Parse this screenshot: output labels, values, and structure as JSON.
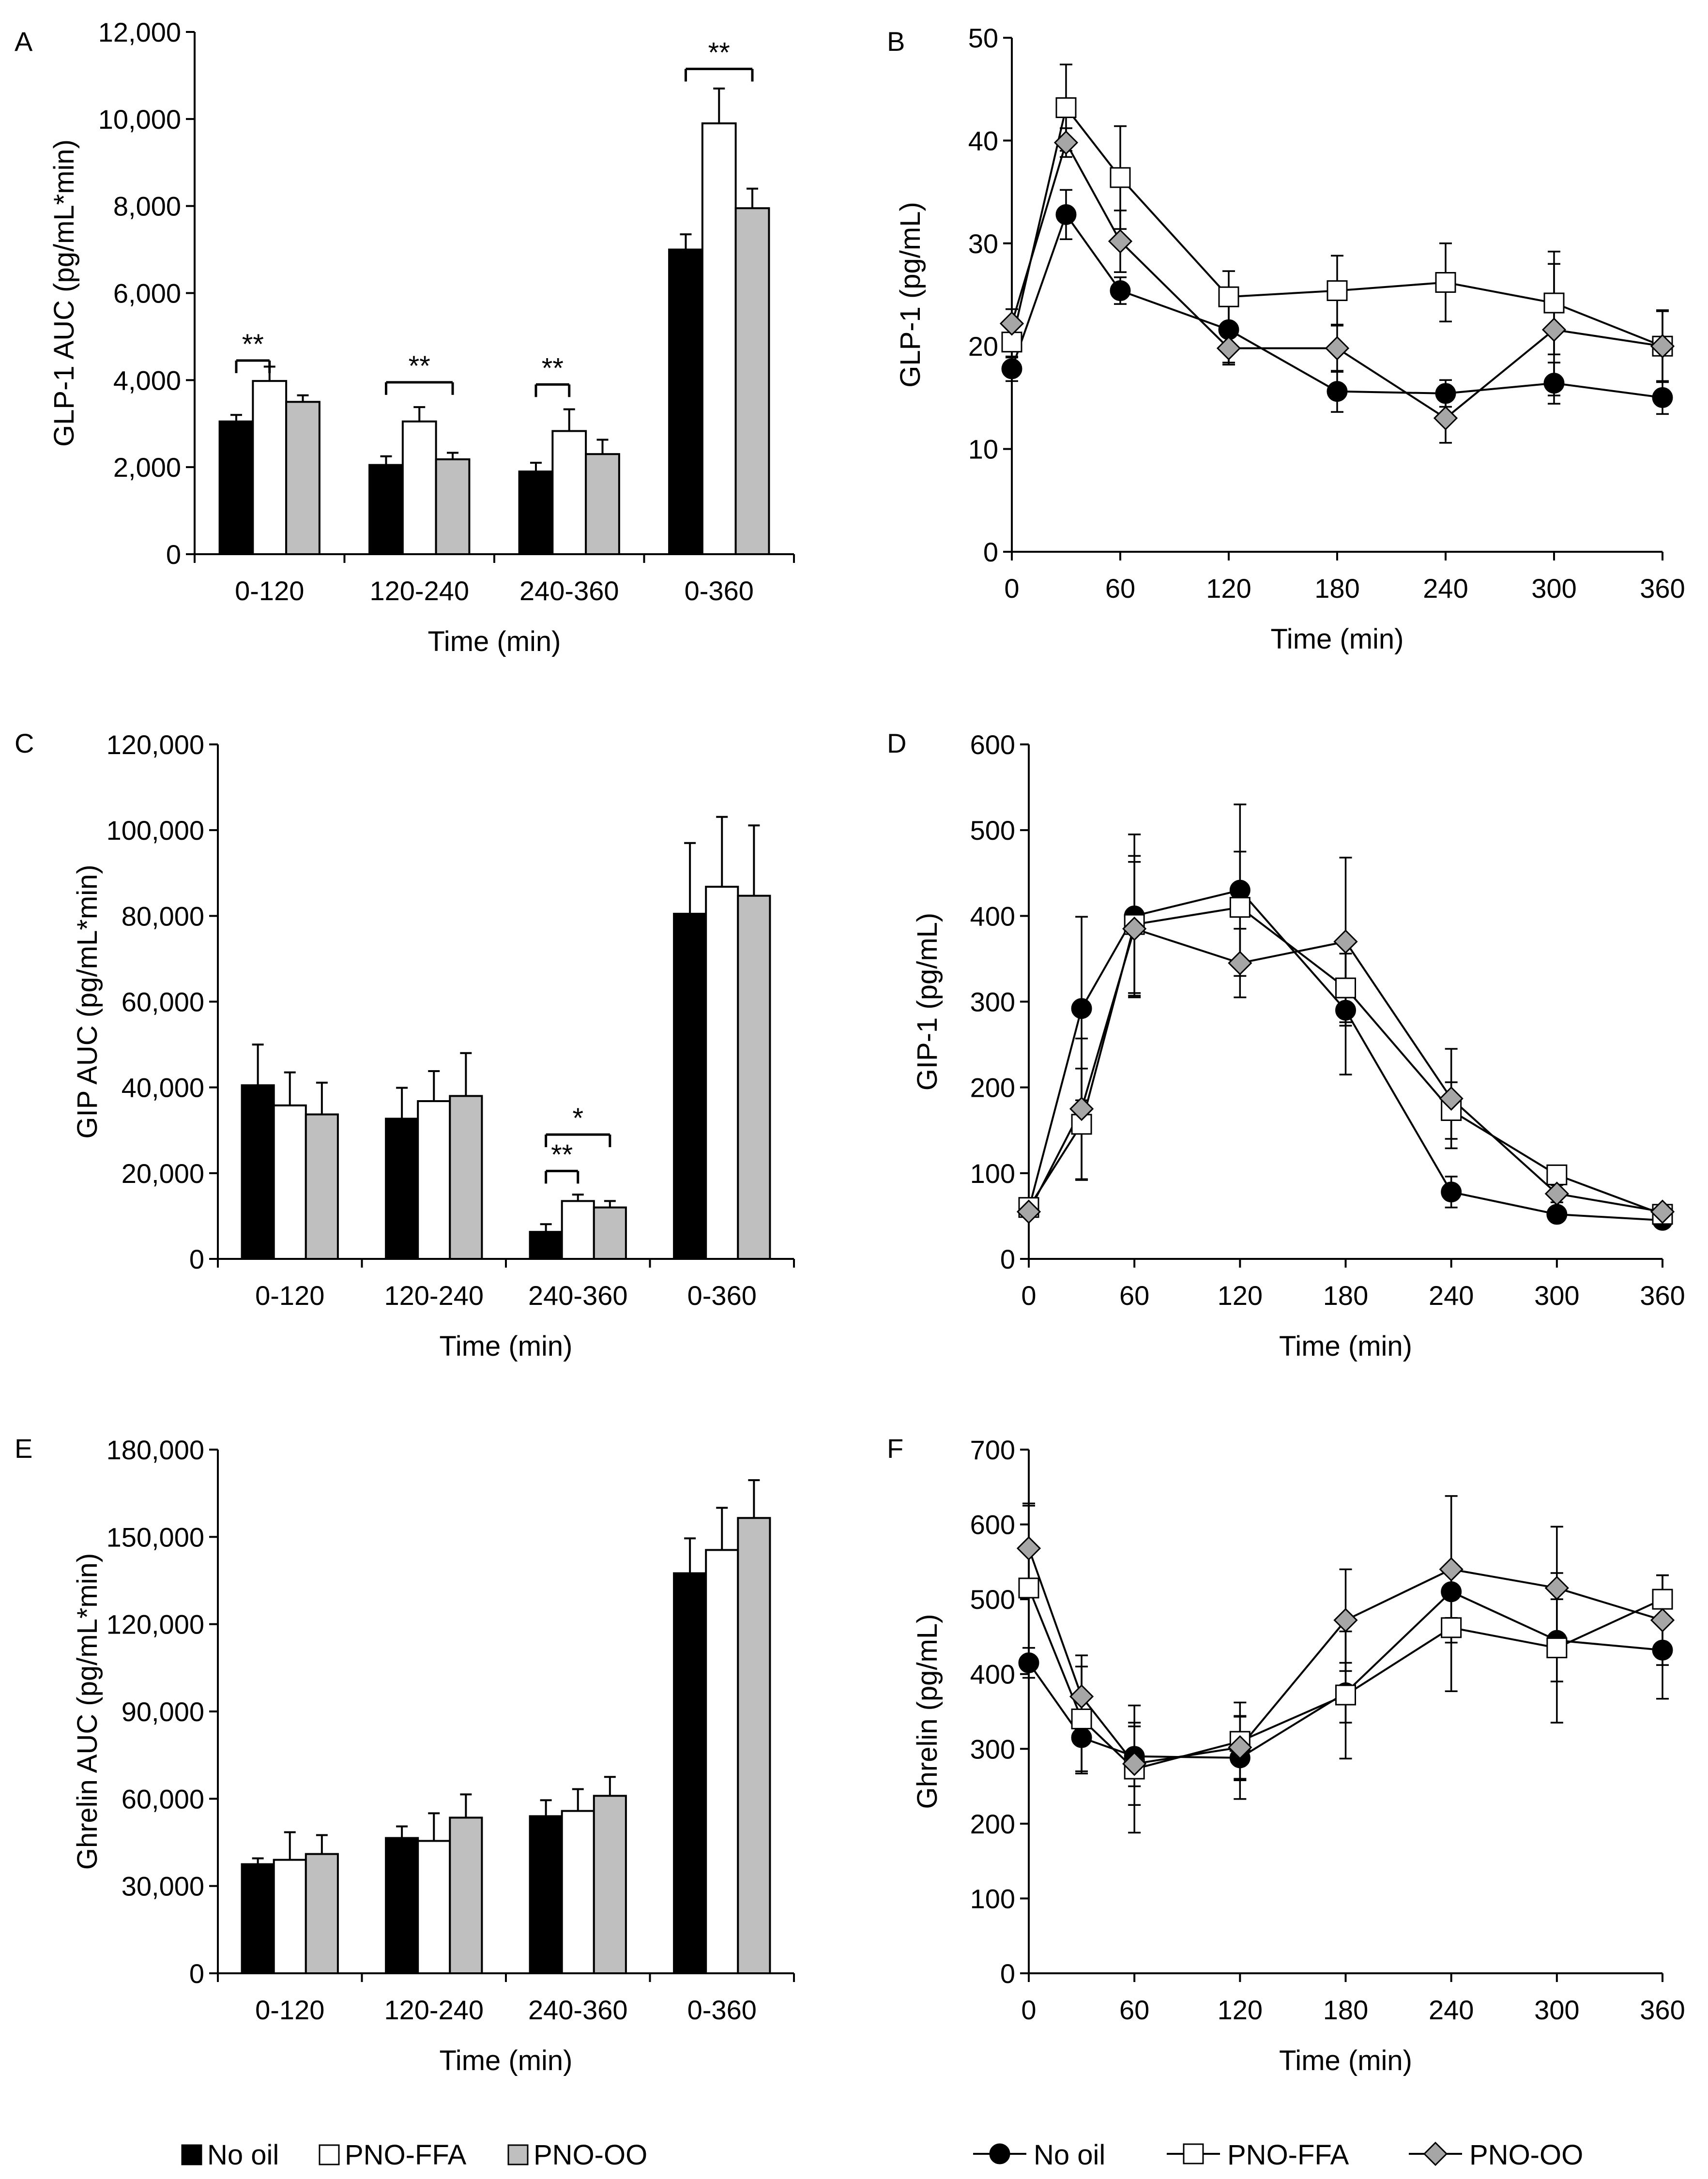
{
  "colors": {
    "no_oil": "#000000",
    "pno_ffa": "#ffffff",
    "pno_oo": "#bfbfbf",
    "pno_oo_marker": "#a6a6a6",
    "axis": "#000000"
  },
  "legend_bar": {
    "items": [
      {
        "label": "No oil",
        "swatch": "#000000"
      },
      {
        "label": "PNO-FFA",
        "swatch": "#ffffff"
      },
      {
        "label": "PNO-OO",
        "swatch": "#bfbfbf"
      }
    ]
  },
  "legend_line": {
    "items": [
      {
        "label": "No oil",
        "marker": "circle"
      },
      {
        "label": "PNO-FFA",
        "marker": "square"
      },
      {
        "label": "PNO-OO",
        "marker": "diamond"
      }
    ]
  },
  "chart_data": [
    {
      "panel": "A",
      "type": "bar",
      "ylabel": "GLP-1 AUC (pg/mL*min)",
      "xlabel": "Time (min)",
      "ylim": [
        0,
        12000
      ],
      "yticks": [
        0,
        2000,
        4000,
        6000,
        8000,
        10000,
        12000
      ],
      "ytick_labels": [
        "0",
        "2,000",
        "4,000",
        "6,000",
        "8,000",
        "10,000",
        "12,000"
      ],
      "categories": [
        "0-120",
        "120-240",
        "240-360",
        "0-360"
      ],
      "series": [
        {
          "name": "No oil",
          "values": [
            3050,
            2050,
            1900,
            7000
          ],
          "errors": [
            150,
            200,
            200,
            350
          ]
        },
        {
          "name": "PNO-FFA",
          "values": [
            3980,
            3050,
            2830,
            9900
          ],
          "errors": [
            330,
            330,
            500,
            800
          ]
        },
        {
          "name": "PNO-OO",
          "values": [
            3500,
            2180,
            2300,
            7950
          ],
          "errors": [
            150,
            150,
            330,
            450
          ]
        }
      ],
      "significance": [
        {
          "category": 0,
          "label": "**",
          "from_series": 0,
          "to_series": 1,
          "level": 4450
        },
        {
          "category": 1,
          "label": "**",
          "from_series": 0,
          "to_series": 2,
          "level": 3950
        },
        {
          "category": 2,
          "label": "**",
          "from_series": 0,
          "to_series": 1,
          "level": 3900
        },
        {
          "category": 3,
          "label": "**",
          "from_series": 0,
          "to_series": 2,
          "level": 11150
        }
      ]
    },
    {
      "panel": "B",
      "type": "line",
      "ylabel": "GLP-1 (pg/mL)",
      "xlabel": "Time (min)",
      "ylim": [
        0,
        50
      ],
      "yticks": [
        0,
        10,
        20,
        30,
        40,
        50
      ],
      "ytick_labels": [
        "0",
        "10",
        "20",
        "30",
        "40",
        "50"
      ],
      "xlim": [
        0,
        360
      ],
      "xticks": [
        0,
        60,
        120,
        180,
        240,
        300,
        360
      ],
      "xtick_labels": [
        "0",
        "60",
        "120",
        "180",
        "240",
        "300",
        "360"
      ],
      "x": [
        0,
        30,
        60,
        120,
        180,
        240,
        300,
        360
      ],
      "series": [
        {
          "name": "No oil",
          "marker": "circle",
          "values": [
            17.8,
            32.8,
            25.4,
            21.6,
            15.6,
            15.4,
            16.4,
            15.0
          ],
          "errors": [
            1.2,
            2.4,
            1.3,
            3.2,
            2.0,
            1.3,
            2.0,
            1.6
          ]
        },
        {
          "name": "PNO-FFA",
          "marker": "square",
          "values": [
            20.4,
            43.2,
            36.4,
            24.8,
            25.4,
            26.2,
            24.2,
            20.0
          ],
          "errors": [
            1.5,
            4.2,
            5.0,
            2.5,
            3.4,
            3.8,
            5.0,
            3.5
          ]
        },
        {
          "name": "PNO-OO",
          "marker": "diamond",
          "values": [
            22.2,
            39.8,
            30.2,
            19.8,
            19.8,
            13.0,
            21.6,
            20.0
          ],
          "errors": [
            1.4,
            1.4,
            3.0,
            1.6,
            2.3,
            2.4,
            6.4,
            3.4
          ]
        }
      ]
    },
    {
      "panel": "C",
      "type": "bar",
      "ylabel": "GIP AUC (pg/mL*min)",
      "xlabel": "Time (min)",
      "ylim": [
        0,
        120000
      ],
      "yticks": [
        0,
        20000,
        40000,
        60000,
        80000,
        100000,
        120000
      ],
      "ytick_labels": [
        "0",
        "20,000",
        "40,000",
        "60,000",
        "80,000",
        "100,000",
        "120,000"
      ],
      "categories": [
        "0-120",
        "120-240",
        "240-360",
        "0-360"
      ],
      "series": [
        {
          "name": "No oil",
          "values": [
            40500,
            32700,
            6300,
            80500
          ],
          "errors": [
            9500,
            7200,
            1800,
            16500
          ]
        },
        {
          "name": "PNO-FFA",
          "values": [
            35800,
            36800,
            13500,
            86800
          ],
          "errors": [
            7700,
            7000,
            1500,
            16300
          ]
        },
        {
          "name": "PNO-OO",
          "values": [
            33700,
            38000,
            12000,
            84700
          ],
          "errors": [
            7400,
            10000,
            1500,
            16400
          ]
        }
      ],
      "significance": [
        {
          "category": 2,
          "label": "**",
          "from_series": 0,
          "to_series": 1,
          "level": 20500
        },
        {
          "category": 2,
          "label": "*",
          "from_series": 0,
          "to_series": 2,
          "level": 29000
        }
      ]
    },
    {
      "panel": "D",
      "type": "line",
      "ylabel": "GIP-1 (pg/mL)",
      "xlabel": "Time (min)",
      "ylim": [
        0,
        600
      ],
      "yticks": [
        0,
        100,
        200,
        300,
        400,
        500,
        600
      ],
      "ytick_labels": [
        "0",
        "100",
        "200",
        "300",
        "400",
        "500",
        "600"
      ],
      "xlim": [
        0,
        360
      ],
      "xticks": [
        0,
        60,
        120,
        180,
        240,
        300,
        360
      ],
      "xtick_labels": [
        "0",
        "60",
        "120",
        "180",
        "240",
        "300",
        "360"
      ],
      "x": [
        0,
        30,
        60,
        120,
        180,
        240,
        300,
        360
      ],
      "series": [
        {
          "name": "No oil",
          "marker": "circle",
          "values": [
            58,
            292,
            400,
            430,
            290,
            78,
            52,
            45
          ],
          "errors": [
            5,
            107,
            95,
            100,
            75,
            18,
            8,
            5
          ]
        },
        {
          "name": "PNO-FFA",
          "marker": "square",
          "values": [
            60,
            157,
            390,
            410,
            316,
            173,
            98,
            52
          ],
          "errors": [
            5,
            65,
            80,
            65,
            40,
            33,
            10,
            5
          ]
        },
        {
          "name": "PNO-OO",
          "marker": "diamond",
          "values": [
            55,
            175,
            385,
            345,
            370,
            187,
            76,
            55
          ],
          "errors": [
            5,
            82,
            78,
            40,
            98,
            58,
            10,
            5
          ]
        }
      ]
    },
    {
      "panel": "E",
      "type": "bar",
      "ylabel": "Ghrelin AUC (pg/mL*min)",
      "xlabel": "Time (min)",
      "ylim": [
        0,
        180000
      ],
      "yticks": [
        0,
        30000,
        60000,
        90000,
        120000,
        150000,
        180000
      ],
      "ytick_labels": [
        "0",
        "30,000",
        "60,000",
        "90,000",
        "120,000",
        "150,000",
        "180,000"
      ],
      "categories": [
        "0-120",
        "120-240",
        "240-360",
        "0-360"
      ],
      "series": [
        {
          "name": "No oil",
          "values": [
            37500,
            46500,
            54000,
            137500
          ],
          "errors": [
            2000,
            4000,
            5500,
            12000
          ]
        },
        {
          "name": "PNO-FFA",
          "values": [
            39000,
            45500,
            55800,
            145500
          ],
          "errors": [
            9500,
            9500,
            7500,
            14500
          ]
        },
        {
          "name": "PNO-OO",
          "values": [
            41000,
            53500,
            61000,
            156500
          ],
          "errors": [
            6500,
            8000,
            6500,
            13000
          ]
        }
      ]
    },
    {
      "panel": "F",
      "type": "line",
      "ylabel": "Ghrelin (pg/mL)",
      "xlabel": "Time (min)",
      "ylim": [
        0,
        700
      ],
      "yticks": [
        0,
        100,
        200,
        300,
        400,
        500,
        600,
        700
      ],
      "ytick_labels": [
        "0",
        "100",
        "200",
        "300",
        "400",
        "500",
        "600",
        "700"
      ],
      "xlim": [
        0,
        360
      ],
      "xticks": [
        0,
        60,
        120,
        180,
        240,
        300,
        360
      ],
      "xtick_labels": [
        "0",
        "60",
        "120",
        "180",
        "240",
        "300",
        "360"
      ],
      "x": [
        0,
        30,
        60,
        120,
        180,
        240,
        300,
        360
      ],
      "series": [
        {
          "name": "No oil",
          "marker": "circle",
          "values": [
            415,
            315,
            290,
            288,
            375,
            510,
            445,
            432
          ],
          "errors": [
            20,
            48,
            40,
            55,
            40,
            35,
            55,
            65
          ]
        },
        {
          "name": "PNO-FFA",
          "marker": "square",
          "values": [
            515,
            340,
            273,
            310,
            372,
            462,
            435,
            500
          ],
          "errors": [
            110,
            70,
            85,
            52,
            85,
            85,
            100,
            32
          ]
        },
        {
          "name": "PNO-OO",
          "marker": "diamond",
          "values": [
            568,
            370,
            280,
            302,
            472,
            540,
            515,
            472
          ],
          "errors": [
            60,
            55,
            55,
            42,
            68,
            98,
            82,
            60
          ]
        }
      ]
    }
  ]
}
